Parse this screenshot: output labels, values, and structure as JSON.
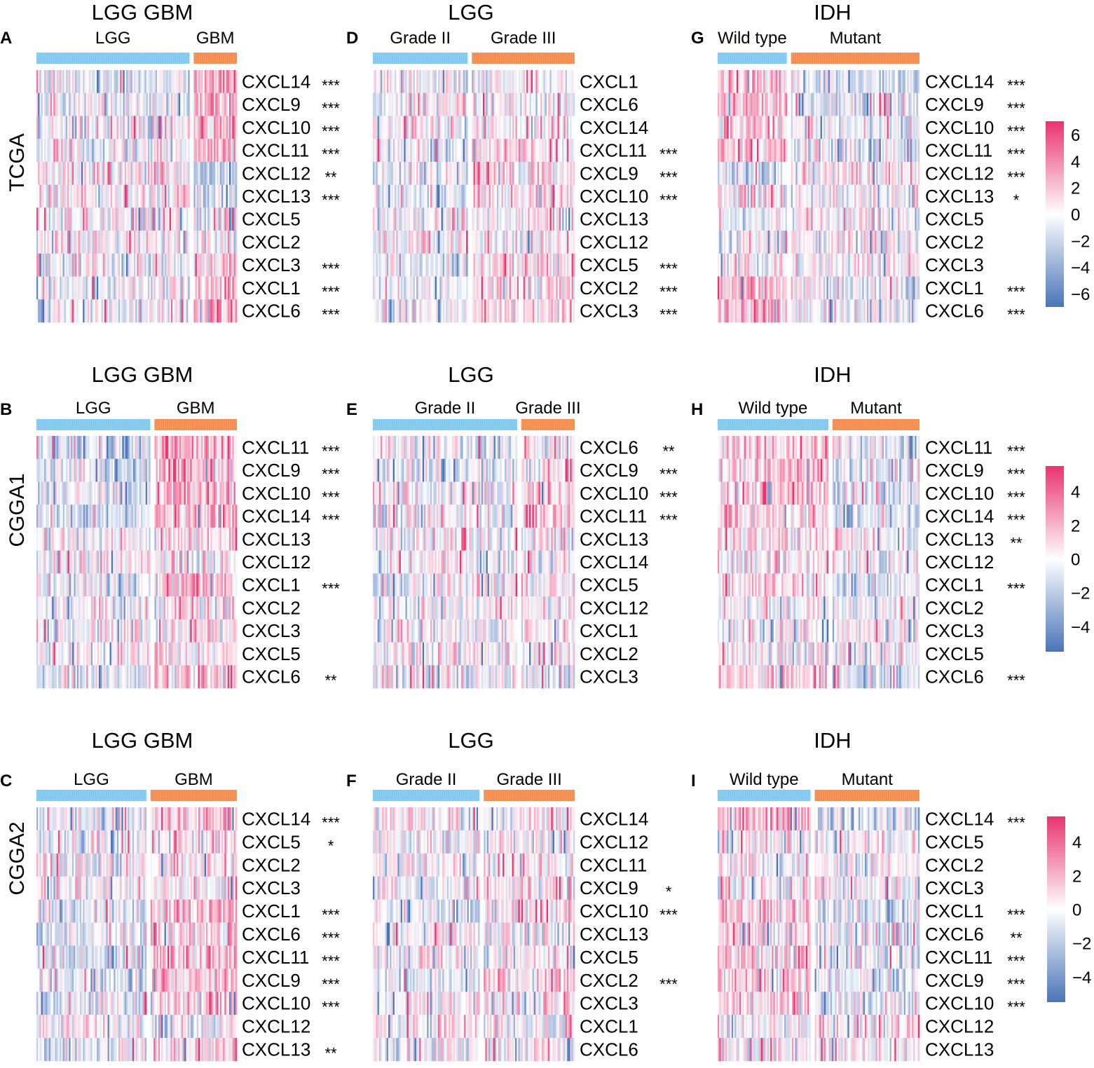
{
  "colors": {
    "group_a": "#7ec8ee",
    "group_b": "#f58a4b",
    "high": "#e8336f",
    "mid": "#ffffff",
    "low": "#4a74b8"
  },
  "rows": [
    {
      "dataset": "TCGA",
      "scale": {
        "ticks": [
          6,
          4,
          2,
          0,
          -2,
          -4,
          -6
        ],
        "range": [
          -7,
          7
        ]
      }
    },
    {
      "dataset": "CGGA1",
      "scale": {
        "ticks": [
          4,
          2,
          0,
          -2,
          -4
        ],
        "range": [
          -5.5,
          5.5
        ]
      }
    },
    {
      "dataset": "CGGA2",
      "scale": {
        "ticks": [
          4,
          2,
          0,
          -2,
          -4
        ],
        "range": [
          -5.5,
          5.5
        ]
      }
    }
  ],
  "chart_data": [
    {
      "type": "heatmap",
      "panel": "A",
      "title": "LGG GBM",
      "dataset": "TCGA",
      "groups": [
        {
          "label": "LGG",
          "fraction": 0.78
        },
        {
          "label": "GBM",
          "fraction": 0.22
        }
      ],
      "genes": [
        "CXCL14",
        "CXCL9",
        "CXCL10",
        "CXCL11",
        "CXCL12",
        "CXCL13",
        "CXCL5",
        "CXCL2",
        "CXCL3",
        "CXCL1",
        "CXCL6"
      ],
      "significance": [
        "***",
        "***",
        "***",
        "***",
        "**",
        "***",
        "",
        "",
        "***",
        "***",
        "***"
      ],
      "group_mean_z": [
        [
          -0.2,
          0.8
        ],
        [
          -0.1,
          0.6
        ],
        [
          -0.1,
          0.6
        ],
        [
          -0.1,
          0.5
        ],
        [
          0.2,
          -0.6
        ],
        [
          0.1,
          -0.4
        ],
        [
          0,
          0
        ],
        [
          0,
          0
        ],
        [
          -0.1,
          0.5
        ],
        [
          -0.1,
          0.6
        ],
        [
          -0.1,
          0.7
        ]
      ]
    },
    {
      "type": "heatmap",
      "panel": "D",
      "title": "LGG",
      "dataset": "TCGA",
      "groups": [
        {
          "label": "Grade II",
          "fraction": 0.48
        },
        {
          "label": "Grade III",
          "fraction": 0.52
        }
      ],
      "genes": [
        "CXCL1",
        "CXCL6",
        "CXCL14",
        "CXCL11",
        "CXCL9",
        "CXCL10",
        "CXCL13",
        "CXCL12",
        "CXCL5",
        "CXCL2",
        "CXCL3"
      ],
      "significance": [
        "",
        "",
        "",
        "***",
        "***",
        "***",
        "",
        "",
        "***",
        "***",
        "***"
      ],
      "group_mean_z": [
        [
          0,
          0
        ],
        [
          0,
          0
        ],
        [
          0,
          0
        ],
        [
          -0.2,
          0.3
        ],
        [
          -0.2,
          0.3
        ],
        [
          -0.2,
          0.3
        ],
        [
          0,
          0
        ],
        [
          0,
          0
        ],
        [
          -0.2,
          0.3
        ],
        [
          -0.2,
          0.3
        ],
        [
          -0.2,
          0.3
        ]
      ]
    },
    {
      "type": "heatmap",
      "panel": "G",
      "title": "IDH",
      "dataset": "TCGA",
      "groups": [
        {
          "label": "Wild type",
          "fraction": 0.35
        },
        {
          "label": "Mutant",
          "fraction": 0.65
        }
      ],
      "genes": [
        "CXCL14",
        "CXCL9",
        "CXCL10",
        "CXCL11",
        "CXCL12",
        "CXCL13",
        "CXCL5",
        "CXCL2",
        "CXCL3",
        "CXCL1",
        "CXCL6"
      ],
      "significance": [
        "***",
        "***",
        "***",
        "***",
        "***",
        "*",
        "",
        "",
        "",
        "***",
        "***"
      ],
      "group_mean_z": [
        [
          0.6,
          -0.3
        ],
        [
          0.5,
          -0.2
        ],
        [
          0.5,
          -0.2
        ],
        [
          0.5,
          -0.2
        ],
        [
          -0.5,
          0.2
        ],
        [
          0.2,
          -0.1
        ],
        [
          0,
          0
        ],
        [
          0,
          0
        ],
        [
          0,
          0
        ],
        [
          0.4,
          -0.2
        ],
        [
          0.5,
          -0.2
        ]
      ]
    },
    {
      "type": "heatmap",
      "panel": "B",
      "title": "LGG GBM",
      "dataset": "CGGA1",
      "groups": [
        {
          "label": "LGG",
          "fraction": 0.58
        },
        {
          "label": "GBM",
          "fraction": 0.42
        }
      ],
      "genes": [
        "CXCL11",
        "CXCL9",
        "CXCL10",
        "CXCL14",
        "CXCL13",
        "CXCL12",
        "CXCL1",
        "CXCL2",
        "CXCL3",
        "CXCL5",
        "CXCL6"
      ],
      "significance": [
        "***",
        "***",
        "***",
        "***",
        "",
        "",
        "***",
        "",
        "",
        "",
        "**"
      ],
      "group_mean_z": [
        [
          -0.3,
          0.6
        ],
        [
          -0.3,
          0.5
        ],
        [
          -0.3,
          0.6
        ],
        [
          -0.3,
          0.5
        ],
        [
          0,
          0.1
        ],
        [
          0,
          0.1
        ],
        [
          -0.3,
          0.5
        ],
        [
          0,
          0.1
        ],
        [
          0,
          0.1
        ],
        [
          0,
          0.1
        ],
        [
          -0.2,
          0.4
        ]
      ]
    },
    {
      "type": "heatmap",
      "panel": "E",
      "title": "LGG",
      "dataset": "CGGA1",
      "groups": [
        {
          "label": "Grade II",
          "fraction": 0.73
        },
        {
          "label": "Grade III",
          "fraction": 0.27
        }
      ],
      "genes": [
        "CXCL6",
        "CXCL9",
        "CXCL10",
        "CXCL11",
        "CXCL13",
        "CXCL14",
        "CXCL5",
        "CXCL12",
        "CXCL1",
        "CXCL2",
        "CXCL3"
      ],
      "significance": [
        "**",
        "***",
        "***",
        "***",
        "",
        "",
        "",
        "",
        "",
        "",
        ""
      ],
      "group_mean_z": [
        [
          -0.1,
          0.3
        ],
        [
          -0.1,
          0.4
        ],
        [
          -0.1,
          0.4
        ],
        [
          -0.1,
          0.4
        ],
        [
          0,
          0
        ],
        [
          0,
          0
        ],
        [
          0,
          0
        ],
        [
          0,
          0
        ],
        [
          0,
          0
        ],
        [
          0,
          0
        ],
        [
          0,
          0
        ]
      ]
    },
    {
      "type": "heatmap",
      "panel": "H",
      "title": "IDH",
      "dataset": "CGGA1",
      "groups": [
        {
          "label": "Wild type",
          "fraction": 0.56
        },
        {
          "label": "Mutant",
          "fraction": 0.44
        }
      ],
      "genes": [
        "CXCL11",
        "CXCL9",
        "CXCL10",
        "CXCL14",
        "CXCL13",
        "CXCL12",
        "CXCL1",
        "CXCL2",
        "CXCL3",
        "CXCL5",
        "CXCL6"
      ],
      "significance": [
        "***",
        "***",
        "***",
        "***",
        "**",
        "",
        "***",
        "",
        "",
        "",
        "***"
      ],
      "group_mean_z": [
        [
          0.4,
          -0.3
        ],
        [
          0.4,
          -0.3
        ],
        [
          0.4,
          -0.3
        ],
        [
          0.4,
          -0.3
        ],
        [
          0.2,
          -0.1
        ],
        [
          0,
          0
        ],
        [
          0.4,
          -0.3
        ],
        [
          0,
          0
        ],
        [
          0,
          0
        ],
        [
          0,
          0
        ],
        [
          0.4,
          -0.3
        ]
      ]
    },
    {
      "type": "heatmap",
      "panel": "C",
      "title": "LGG GBM",
      "dataset": "CGGA2",
      "groups": [
        {
          "label": "LGG",
          "fraction": 0.56
        },
        {
          "label": "GBM",
          "fraction": 0.44
        }
      ],
      "genes": [
        "CXCL14",
        "CXCL5",
        "CXCL2",
        "CXCL3",
        "CXCL1",
        "CXCL6",
        "CXCL11",
        "CXCL9",
        "CXCL10",
        "CXCL12",
        "CXCL13"
      ],
      "significance": [
        "***",
        "*",
        "",
        "",
        "***",
        "***",
        "***",
        "***",
        "***",
        "",
        "**"
      ],
      "group_mean_z": [
        [
          -0.3,
          0.5
        ],
        [
          -0.1,
          0.2
        ],
        [
          0,
          0
        ],
        [
          0,
          0
        ],
        [
          -0.3,
          0.4
        ],
        [
          -0.3,
          0.4
        ],
        [
          -0.3,
          0.5
        ],
        [
          -0.3,
          0.5
        ],
        [
          -0.3,
          0.5
        ],
        [
          0,
          0
        ],
        [
          -0.2,
          0.3
        ]
      ]
    },
    {
      "type": "heatmap",
      "panel": "F",
      "title": "LGG",
      "dataset": "CGGA2",
      "groups": [
        {
          "label": "Grade II",
          "fraction": 0.54
        },
        {
          "label": "Grade III",
          "fraction": 0.46
        }
      ],
      "genes": [
        "CXCL14",
        "CXCL12",
        "CXCL11",
        "CXCL9",
        "CXCL10",
        "CXCL13",
        "CXCL5",
        "CXCL2",
        "CXCL3",
        "CXCL1",
        "CXCL6"
      ],
      "significance": [
        "",
        "",
        "",
        "*",
        "***",
        "",
        "",
        "***",
        "",
        "",
        ""
      ],
      "group_mean_z": [
        [
          0,
          0
        ],
        [
          0,
          0
        ],
        [
          0,
          0
        ],
        [
          -0.1,
          0.2
        ],
        [
          -0.2,
          0.3
        ],
        [
          0,
          0
        ],
        [
          0,
          0
        ],
        [
          -0.2,
          0.3
        ],
        [
          0,
          0
        ],
        [
          0,
          0
        ],
        [
          0,
          0
        ]
      ]
    },
    {
      "type": "heatmap",
      "panel": "I",
      "title": "IDH",
      "dataset": "CGGA2",
      "groups": [
        {
          "label": "Wild type",
          "fraction": 0.47
        },
        {
          "label": "Mutant",
          "fraction": 0.53
        }
      ],
      "genes": [
        "CXCL14",
        "CXCL5",
        "CXCL2",
        "CXCL3",
        "CXCL1",
        "CXCL6",
        "CXCL11",
        "CXCL9",
        "CXCL10",
        "CXCL12",
        "CXCL13"
      ],
      "significance": [
        "***",
        "",
        "",
        "",
        "***",
        "**",
        "***",
        "***",
        "***",
        "",
        ""
      ],
      "group_mean_z": [
        [
          0.6,
          -0.4
        ],
        [
          0,
          0
        ],
        [
          0,
          0
        ],
        [
          0,
          0
        ],
        [
          0.4,
          -0.3
        ],
        [
          0.3,
          -0.2
        ],
        [
          0.4,
          -0.3
        ],
        [
          0.4,
          -0.3
        ],
        [
          0.4,
          -0.3
        ],
        [
          0,
          0
        ],
        [
          0,
          0
        ]
      ]
    }
  ]
}
